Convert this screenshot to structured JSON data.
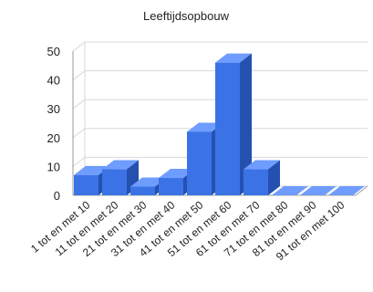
{
  "chart_data": {
    "type": "bar",
    "title": "Leeftijdsopbouw",
    "categories": [
      "1 tot en met 10",
      "11 tot en met 20",
      "21 tot en met 30",
      "31 tot en met 40",
      "41 tot en met 50",
      "51 tot en met 60",
      "61 tot en met 70",
      "71 tot en met 80",
      "81 tot en met 90",
      "91 tot en met 100"
    ],
    "values": [
      7,
      9,
      3,
      6,
      22,
      46,
      9,
      0,
      0,
      0
    ],
    "ylim": [
      0,
      50
    ],
    "yticks": [
      0,
      10,
      20,
      30,
      40,
      50
    ],
    "grid": true,
    "style": "3d",
    "colors": {
      "front": "#3b73e6",
      "top": "#6f9cff",
      "side": "#2450b0",
      "grid": "#d8d8d8",
      "axis": "#9a9a9a"
    }
  }
}
